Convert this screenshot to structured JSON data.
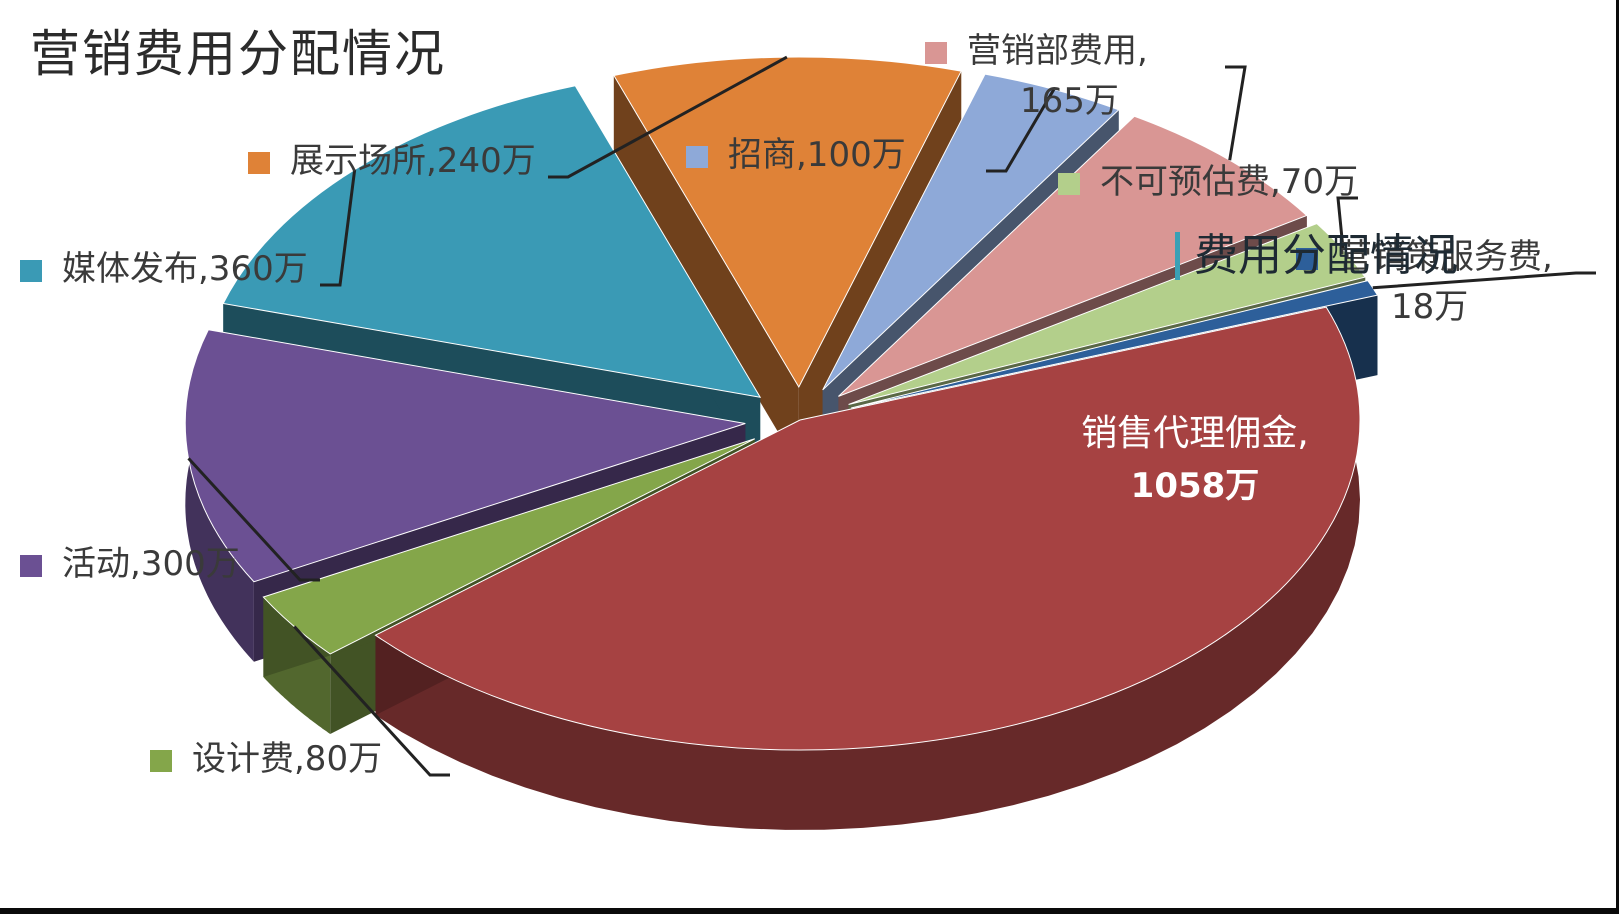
{
  "overlay_title": "费用分配情况",
  "chart_data": {
    "type": "pie",
    "title": "营销费用分配情况",
    "unit": "万",
    "slices": [
      {
        "label": "销售代理佣金",
        "value": 1058,
        "value_text": "1058万",
        "color": "#a64242"
      },
      {
        "label": "设计费",
        "value": 80,
        "value_text": "80万",
        "color": "#84a64a"
      },
      {
        "label": "活动",
        "value": 300,
        "value_text": "300万",
        "color": "#6b5093"
      },
      {
        "label": "媒体发布",
        "value": 360,
        "value_text": "360万",
        "color": "#3a9ab5"
      },
      {
        "label": "展示场所",
        "value": 240,
        "value_text": "240万",
        "color": "#df8237"
      },
      {
        "label": "招商",
        "value": 100,
        "value_text": "100万",
        "color": "#8ea9d8"
      },
      {
        "label": "营销部费用",
        "value": 165,
        "value_text": "165万",
        "color": "#d99694"
      },
      {
        "label": "不可预估费",
        "value": 70,
        "value_text": "70万",
        "color": "#b3cf8b"
      },
      {
        "label": "营销策服务费",
        "value": 18,
        "value_text": "18万",
        "color": "#2d5f9a"
      }
    ]
  }
}
